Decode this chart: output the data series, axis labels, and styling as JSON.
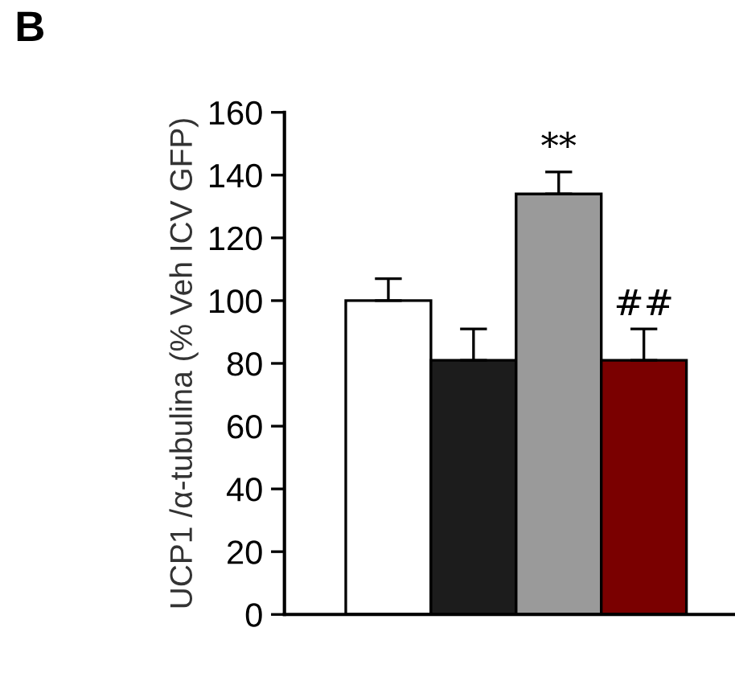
{
  "chart_data": {
    "type": "bar",
    "title": "B",
    "ylabel": "UCP1 /α-tubulina (% Veh ICV GFP)",
    "categories": [
      null,
      null,
      null,
      null
    ],
    "values": [
      100,
      81,
      134,
      81
    ],
    "colors": [
      "#ffffff",
      "#1c1c1c",
      "#9a9a9a",
      "#7a0000"
    ],
    "errors": [
      7,
      10,
      7,
      10
    ],
    "value_labels": [
      null,
      null,
      "**",
      "##"
    ],
    "ylim": [
      0,
      160
    ],
    "yticks": [
      0,
      20,
      40,
      60,
      80,
      100,
      120,
      140,
      160
    ],
    "grid": false,
    "legend": false
  }
}
